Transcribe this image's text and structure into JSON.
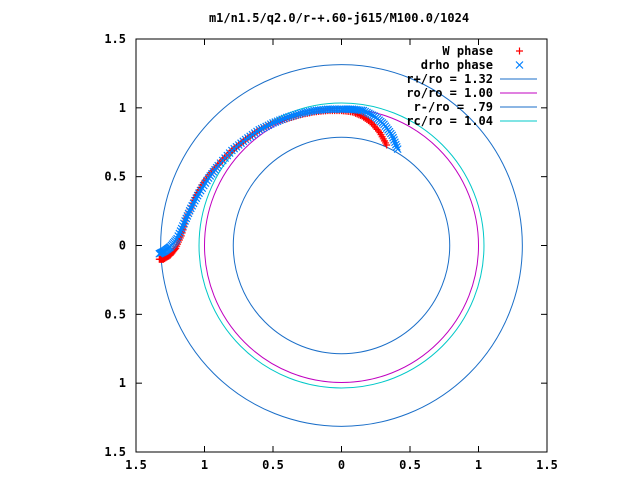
{
  "chart_data": {
    "type": "scatter",
    "title": "m1/n1.5/q2.0/r-+.60-j615/M100.0/1024",
    "xlabel": "",
    "ylabel": "",
    "xlim": [
      -1.5,
      1.5
    ],
    "ylim": [
      -1.5,
      1.5
    ],
    "x_tick_values": [
      -1.5,
      -1,
      -0.5,
      0,
      0.5,
      1,
      1.5
    ],
    "x_tick_labels": [
      "1.5",
      "1",
      "0.5",
      "0",
      "0.5",
      "1",
      "1.5"
    ],
    "y_tick_values": [
      1.5,
      1,
      0.5,
      0,
      -0.5,
      -1,
      -1.5
    ],
    "y_tick_labels": [
      "1.5",
      "1",
      "0.5",
      "0",
      "0.5",
      "1",
      "1.5"
    ],
    "grid": false,
    "legend_position": "top-right",
    "series": [
      {
        "name": "W phase",
        "kind": "points",
        "marker": "plus",
        "color": "#ff0000",
        "x": [
          0.33,
          0.28,
          0.22,
          0.15,
          0.08,
          0.0,
          -0.1,
          -0.2,
          -0.3,
          -0.4,
          -0.5,
          -0.6,
          -0.7,
          -0.8,
          -0.88,
          -0.95,
          -1.02,
          -1.08,
          -1.13,
          -1.17,
          -1.21,
          -1.25,
          -1.3,
          -1.33
        ],
        "y": [
          0.73,
          0.82,
          0.89,
          0.94,
          0.97,
          0.98,
          0.98,
          0.97,
          0.95,
          0.92,
          0.89,
          0.84,
          0.77,
          0.69,
          0.61,
          0.53,
          0.44,
          0.33,
          0.2,
          0.07,
          -0.02,
          -0.07,
          -0.1,
          -0.1
        ]
      },
      {
        "name": "drho phase",
        "kind": "points",
        "marker": "cross",
        "color": "#0080ff",
        "x": [
          0.41,
          0.37,
          0.31,
          0.24,
          0.16,
          0.08,
          0.0,
          -0.1,
          -0.2,
          -0.3,
          -0.4,
          -0.5,
          -0.6,
          -0.7,
          -0.8,
          -0.9,
          -0.97,
          -1.04,
          -1.1,
          -1.15,
          -1.2,
          -1.25,
          -1.29,
          -1.33
        ],
        "y": [
          0.7,
          0.8,
          0.88,
          0.94,
          0.98,
          0.99,
          0.99,
          0.99,
          0.98,
          0.96,
          0.93,
          0.89,
          0.84,
          0.77,
          0.69,
          0.58,
          0.49,
          0.38,
          0.27,
          0.16,
          0.05,
          -0.01,
          -0.04,
          -0.06
        ]
      },
      {
        "name": "r+/ro = 1.32",
        "kind": "circle",
        "radius": 1.32,
        "color": "#1a6ec8"
      },
      {
        "name": "ro/ro = 1.00",
        "kind": "circle",
        "radius": 1.0,
        "color": "#c000c0"
      },
      {
        "name": "r-/ro = .79",
        "kind": "circle",
        "radius": 0.79,
        "color": "#1a6ec8"
      },
      {
        "name": "rc/ro = 1.04",
        "kind": "circle",
        "radius": 1.04,
        "color": "#00c8c8"
      }
    ]
  }
}
